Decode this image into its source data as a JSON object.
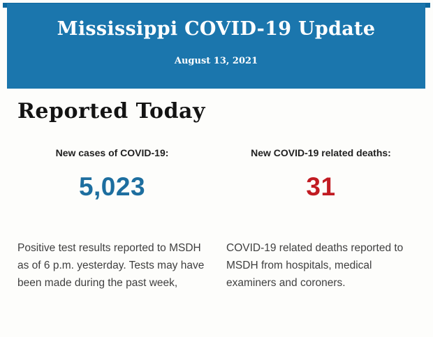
{
  "page": {
    "background": "#fdfdfb"
  },
  "banner": {
    "title": "Mississippi COVID-19 Update",
    "date": "August 13, 2021",
    "background": "#1b76ad",
    "strip_color": "#0e689e",
    "text_color": "#ffffff"
  },
  "section": {
    "heading": "Reported Today"
  },
  "stats": [
    {
      "label": "New cases of COVID-19:",
      "value": "5,023",
      "value_color": "#1d6e9f",
      "description": "Positive test results reported to MSDH as of 6 p.m. yesterday. Tests may have been made during the past week,"
    },
    {
      "label": "New COVID-19 related deaths:",
      "value": "31",
      "value_color": "#c11b22",
      "description": "COVID-19 related deaths reported to MSDH from hospitals, medical examiners and coroners."
    }
  ]
}
